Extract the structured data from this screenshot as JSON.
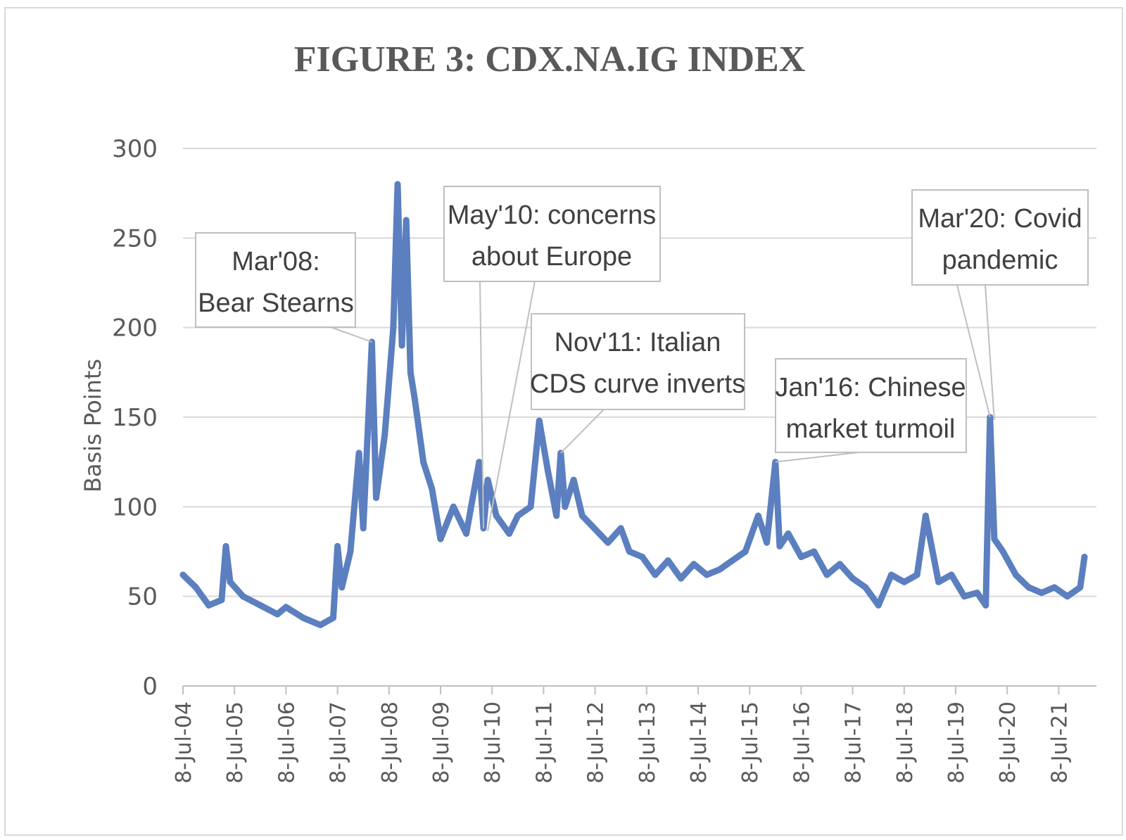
{
  "chart_data": {
    "type": "line",
    "title": "FIGURE 3:  CDX.NA.IG INDEX",
    "xlabel": "",
    "ylabel": "Basis  Points",
    "ylim": [
      0,
      300
    ],
    "yticks": [
      0,
      50,
      100,
      150,
      200,
      250,
      300
    ],
    "grid": true,
    "x_tick_labels": [
      "8-Jul-04",
      "8-Jul-05",
      "8-Jul-06",
      "8-Jul-07",
      "8-Jul-08",
      "8-Jul-09",
      "8-Jul-10",
      "8-Jul-11",
      "8-Jul-12",
      "8-Jul-13",
      "8-Jul-14",
      "8-Jul-15",
      "8-Jul-16",
      "8-Jul-17",
      "8-Jul-18",
      "8-Jul-19",
      "8-Jul-20",
      "8-Jul-21"
    ],
    "series_color": "#5b7fbf",
    "series": [
      {
        "name": "",
        "x": [
          "2004-07",
          "2004-10",
          "2005-01",
          "2005-04",
          "2005-05",
          "2005-06",
          "2005-09",
          "2006-01",
          "2006-05",
          "2006-07",
          "2006-11",
          "2007-03",
          "2007-06",
          "2007-07",
          "2007-08",
          "2007-10",
          "2007-12",
          "2008-01",
          "2008-03",
          "2008-04",
          "2008-06",
          "2008-08",
          "2008-09",
          "2008-10",
          "2008-11",
          "2008-12",
          "2009-01",
          "2009-03",
          "2009-05",
          "2009-07",
          "2009-10",
          "2010-01",
          "2010-04",
          "2010-05",
          "2010-06",
          "2010-08",
          "2010-11",
          "2011-01",
          "2011-04",
          "2011-06",
          "2011-08",
          "2011-10",
          "2011-11",
          "2011-12",
          "2012-02",
          "2012-04",
          "2012-06",
          "2012-08",
          "2012-10",
          "2013-01",
          "2013-03",
          "2013-06",
          "2013-09",
          "2013-12",
          "2014-03",
          "2014-06",
          "2014-09",
          "2014-12",
          "2015-03",
          "2015-06",
          "2015-09",
          "2015-11",
          "2016-01",
          "2016-02",
          "2016-04",
          "2016-07",
          "2016-10",
          "2017-01",
          "2017-04",
          "2017-07",
          "2017-10",
          "2018-01",
          "2018-04",
          "2018-07",
          "2018-10",
          "2018-12",
          "2019-03",
          "2019-06",
          "2019-09",
          "2019-12",
          "2020-02",
          "2020-03",
          "2020-04",
          "2020-06",
          "2020-09",
          "2020-12",
          "2021-03",
          "2021-06",
          "2021-09",
          "2021-12",
          "2022-01"
        ],
        "values": [
          62,
          55,
          45,
          48,
          78,
          58,
          50,
          45,
          40,
          44,
          38,
          34,
          38,
          78,
          55,
          75,
          130,
          88,
          192,
          105,
          140,
          200,
          280,
          190,
          260,
          175,
          160,
          125,
          110,
          82,
          100,
          85,
          125,
          88,
          115,
          95,
          85,
          95,
          100,
          148,
          120,
          95,
          130,
          100,
          115,
          95,
          90,
          85,
          80,
          88,
          75,
          72,
          62,
          70,
          60,
          68,
          62,
          65,
          70,
          75,
          95,
          80,
          125,
          78,
          85,
          72,
          75,
          62,
          68,
          60,
          55,
          45,
          62,
          58,
          62,
          95,
          58,
          62,
          50,
          52,
          45,
          150,
          82,
          75,
          62,
          55,
          52,
          55,
          50,
          55,
          72
        ]
      }
    ],
    "annotations": [
      {
        "text_lines": [
          "Mar'08:",
          "Bear Stearns"
        ],
        "points_to": "2008-03"
      },
      {
        "text_lines": [
          "May'10: concerns",
          "about  Europe"
        ],
        "points_to": "2010-05"
      },
      {
        "text_lines": [
          "Nov'11: Italian",
          "CDS curve inverts"
        ],
        "points_to": "2011-11"
      },
      {
        "text_lines": [
          "Jan'16: Chinese",
          "market turmoil"
        ],
        "points_to": "2016-01"
      },
      {
        "text_lines": [
          "Mar'20: Covid",
          "pandemic"
        ],
        "points_to": "2020-03"
      }
    ]
  }
}
